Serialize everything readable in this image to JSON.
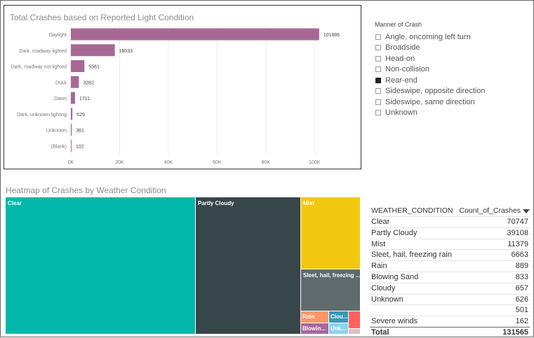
{
  "bar_panel": {
    "title": "Total Crashes based on Reported Light Condition",
    "bar_color": "#a86895"
  },
  "chart_data": {
    "type": "bar",
    "orientation": "horizontal",
    "title": "Total Crashes based on Reported Light Condition",
    "categories": [
      "Daylight",
      "Dark, roadway lighted",
      "Dark, roadway not lighted",
      "Dusk",
      "Dawn",
      "Dark, unknown lighting",
      "Unknown",
      "(Blank)"
    ],
    "values": [
      101886,
      18033,
      5561,
      3282,
      1711,
      629,
      361,
      102
    ],
    "xlim": [
      0,
      110000
    ],
    "xticks": [
      0,
      20000,
      40000,
      60000,
      80000,
      100000
    ],
    "xtick_labels": [
      "0K",
      "20K",
      "40K",
      "60K",
      "80K",
      "100K"
    ],
    "grid": true,
    "data_labels": true
  },
  "slicer": {
    "title": "Manner of Crash",
    "items": [
      {
        "label": "Angle, oncoming left turn",
        "checked": false
      },
      {
        "label": "Broadside",
        "checked": false
      },
      {
        "label": "Head-on",
        "checked": false
      },
      {
        "label": "Non-collision",
        "checked": false
      },
      {
        "label": "Rear-end",
        "checked": true
      },
      {
        "label": "Sideswipe, opposite direction",
        "checked": false
      },
      {
        "label": "Sideswipe, same direction",
        "checked": false
      },
      {
        "label": "Unknown",
        "checked": false
      }
    ]
  },
  "treemap": {
    "title": "Heatmap of Crashes by Weather Condition",
    "cells": [
      {
        "label": "Clear",
        "value": 70747,
        "color": "#01b8aa"
      },
      {
        "label": "Partly Cloudy",
        "value": 39108,
        "color": "#374649"
      },
      {
        "label": "Mist",
        "value": 11379,
        "color": "#f2c80f"
      },
      {
        "label": "Sleet, hail, freezing ...",
        "value": 6663,
        "color": "#5f6b6d"
      },
      {
        "label": "Rain",
        "value": 889,
        "color": "#fe9666"
      },
      {
        "label": "Blowin...",
        "value": 833,
        "color": "#a66999"
      },
      {
        "label": "Clou...",
        "value": 657,
        "color": "#3599b8"
      },
      {
        "label": "Unk...",
        "value": 626,
        "color": "#8ad4eb"
      },
      {
        "label": "",
        "value": 501,
        "color": "#fd625e"
      },
      {
        "label": "",
        "value": 162,
        "color": "#dfbfbf"
      }
    ]
  },
  "table": {
    "col1": "WEATHER_CONDITION",
    "col2": "Count_of_Crashes",
    "rows": [
      {
        "name": "Clear",
        "count": "70747"
      },
      {
        "name": "Partly Cloudy",
        "count": "39108"
      },
      {
        "name": "Mist",
        "count": "11379"
      },
      {
        "name": "Sleet, hail, freezing rain",
        "count": "6663"
      },
      {
        "name": "Rain",
        "count": "889"
      },
      {
        "name": "Blowing Sand",
        "count": "833"
      },
      {
        "name": "Cloudy",
        "count": "657"
      },
      {
        "name": "Unknown",
        "count": "626"
      },
      {
        "name": "",
        "count": "501"
      },
      {
        "name": "Severe winds",
        "count": "162"
      }
    ],
    "total_label": "Total",
    "total_value": "131565"
  }
}
